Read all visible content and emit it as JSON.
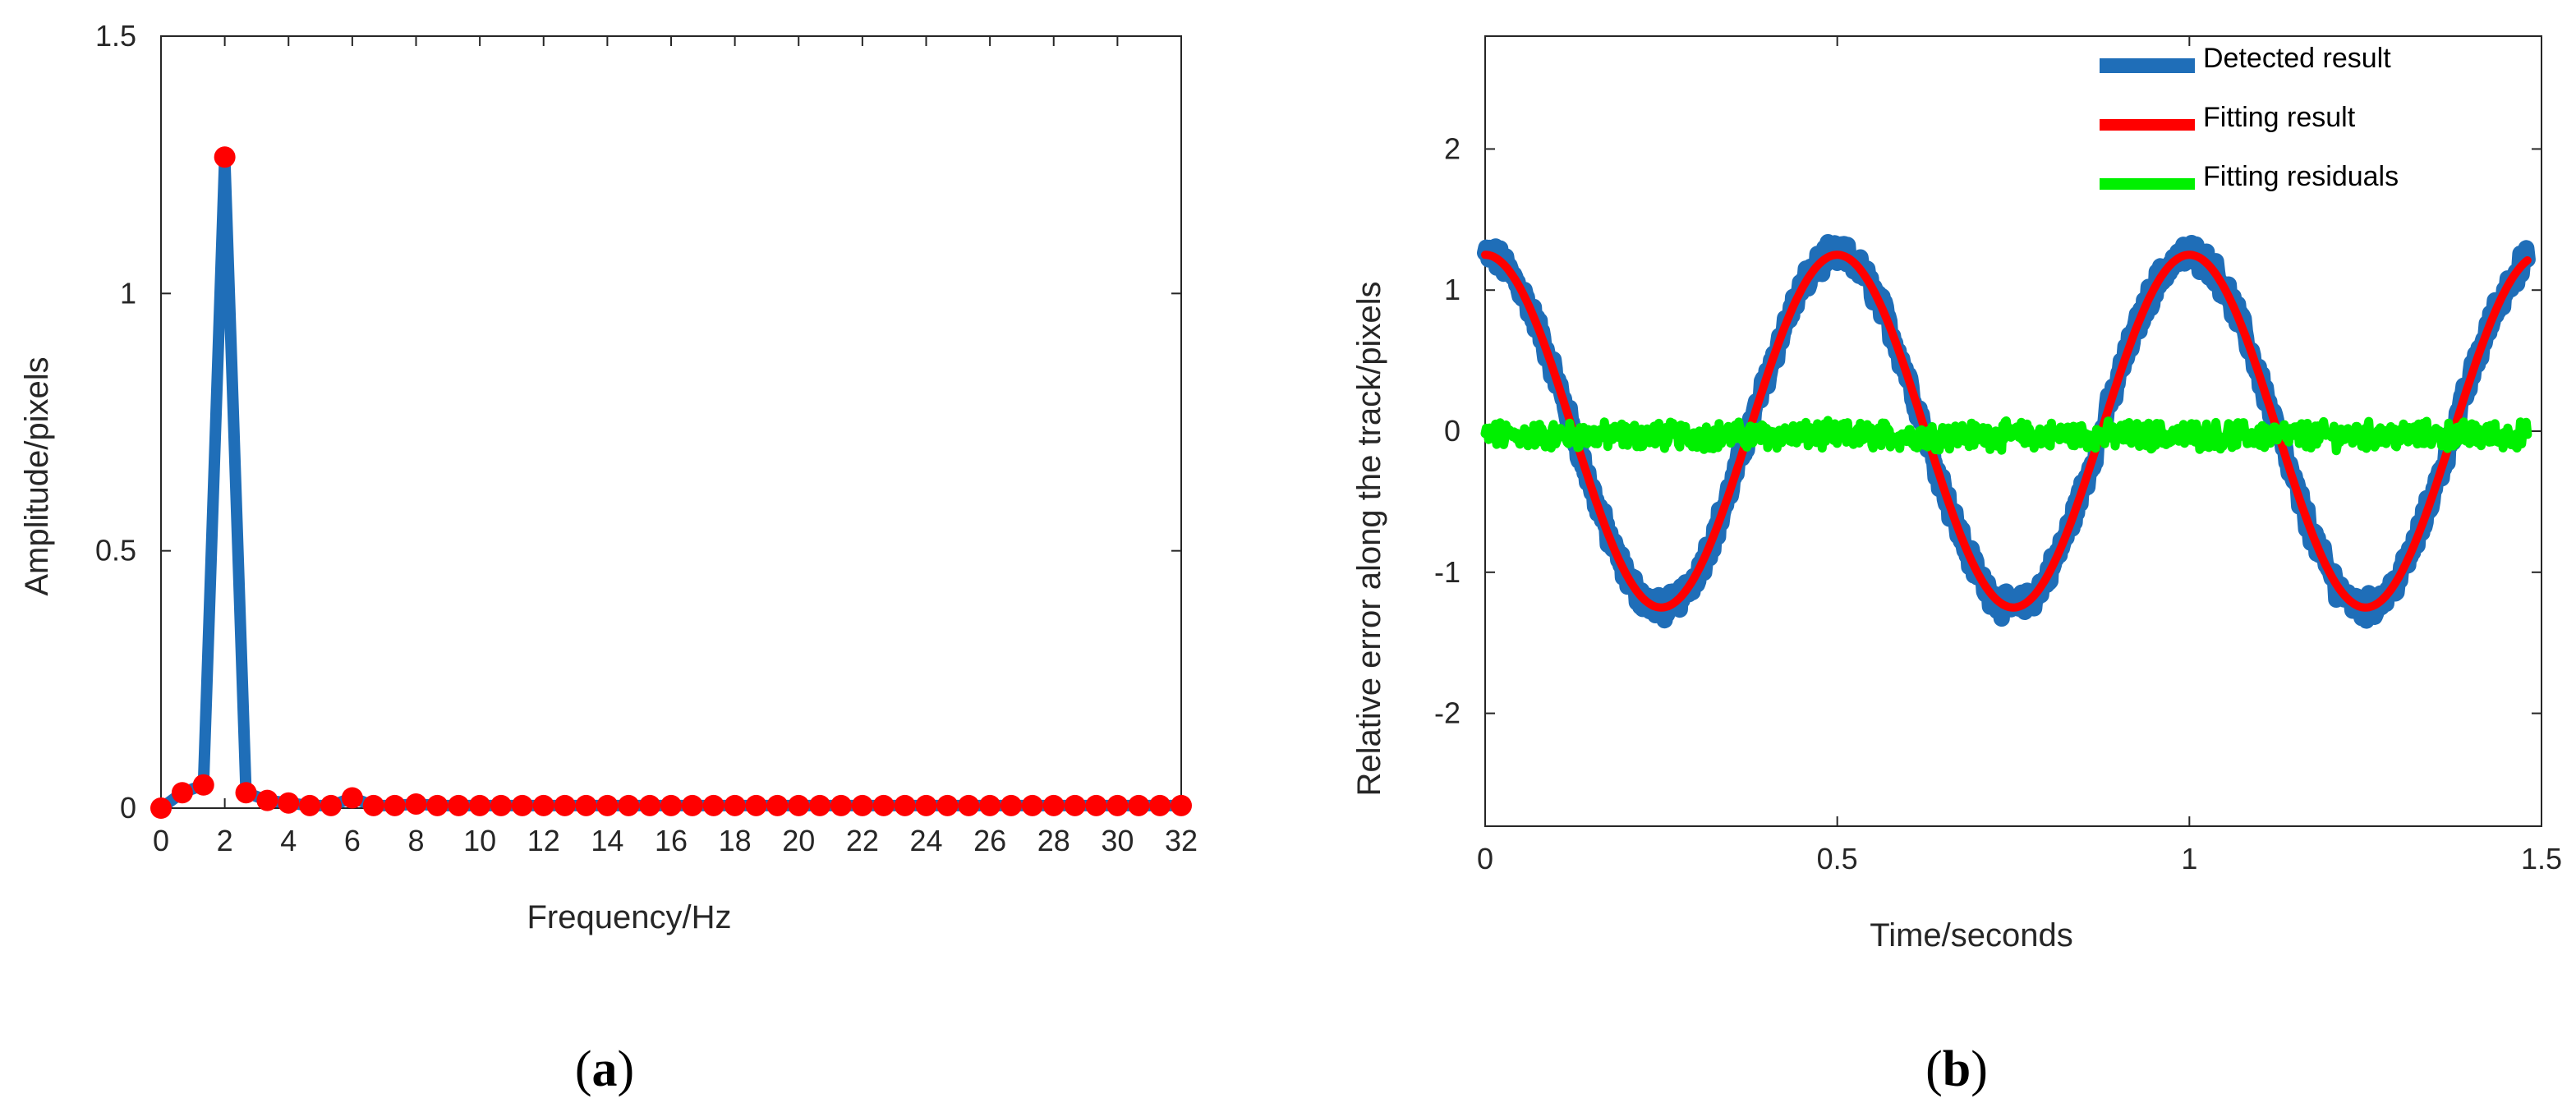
{
  "colors": {
    "detected": "#1f6eb8",
    "fitting": "#ff0000",
    "residuals": "#00f000",
    "stem_marker": "#ff0000",
    "stem_line": "#1f6eb8"
  },
  "chart_data": [
    {
      "type": "line",
      "panel_label": "a",
      "title": "",
      "xlabel": "Frequency/Hz",
      "ylabel": "Amplitude/pixels",
      "xlim": [
        0,
        32
      ],
      "ylim": [
        0,
        1.5
      ],
      "xticks": [
        0,
        2,
        4,
        6,
        8,
        10,
        12,
        14,
        16,
        18,
        20,
        22,
        24,
        26,
        28,
        30,
        32
      ],
      "yticks": [
        0,
        0.5,
        1,
        1.5
      ],
      "ytick_labels": [
        "0",
        "0.5",
        "1",
        "1.5"
      ],
      "grid": false,
      "series": [
        {
          "x": [
            0,
            0.667,
            1.333,
            2.0,
            2.667,
            3.333,
            4.0,
            4.667,
            5.333,
            6.0,
            6.667,
            7.333,
            8.0,
            8.667,
            9.333,
            10.0,
            10.667,
            11.333,
            12.0,
            12.667,
            13.333,
            14.0,
            14.667,
            15.333,
            16.0,
            16.667,
            17.333,
            18.0,
            18.667,
            19.333,
            20.0,
            20.667,
            21.333,
            22.0,
            22.667,
            23.333,
            24.0,
            24.667,
            25.333,
            26.0,
            26.667,
            27.333,
            28.0,
            28.667,
            29.333,
            30.0,
            30.667,
            31.333,
            32.0
          ],
          "values": [
            0.0,
            0.03,
            0.045,
            1.265,
            0.03,
            0.015,
            0.01,
            0.005,
            0.005,
            0.02,
            0.005,
            0.005,
            0.008,
            0.005,
            0.005,
            0.005,
            0.005,
            0.005,
            0.005,
            0.005,
            0.005,
            0.005,
            0.005,
            0.005,
            0.005,
            0.005,
            0.005,
            0.005,
            0.005,
            0.005,
            0.005,
            0.005,
            0.005,
            0.005,
            0.005,
            0.005,
            0.005,
            0.005,
            0.005,
            0.005,
            0.005,
            0.005,
            0.005,
            0.005,
            0.005,
            0.005,
            0.005,
            0.005,
            0.005
          ]
        }
      ]
    },
    {
      "type": "line",
      "panel_label": "b",
      "title": "",
      "xlabel": "Time/seconds",
      "ylabel": "Relative error along the track/pixels",
      "xlim": [
        0,
        1.5
      ],
      "ylim": [
        -2.8,
        2.8
      ],
      "xticks": [
        0,
        0.5,
        1,
        1.5
      ],
      "xtick_labels": [
        "0",
        "0.5",
        "1",
        "1.5"
      ],
      "yticks": [
        -2,
        -1,
        0,
        1,
        2
      ],
      "ytick_labels": [
        "-2",
        "-1",
        "0",
        "1",
        "2"
      ],
      "grid": false,
      "legend_position": "top-right",
      "model": {
        "amplitude": 1.25,
        "frequency_hz": 2.0,
        "phase_note": "cos"
      },
      "series": [
        {
          "name": "Detected result",
          "x_range": [
            0,
            1.48
          ],
          "form": "1.25*cos(2*pi*2*t) + noise"
        },
        {
          "name": "Fitting result",
          "x_range": [
            0,
            1.48
          ],
          "form": "1.25*cos(2*pi*2*t)"
        },
        {
          "name": "Fitting residuals",
          "x_range": [
            0,
            1.48
          ],
          "form": "noise around 0 (|r| < 0.12)"
        }
      ]
    }
  ]
}
